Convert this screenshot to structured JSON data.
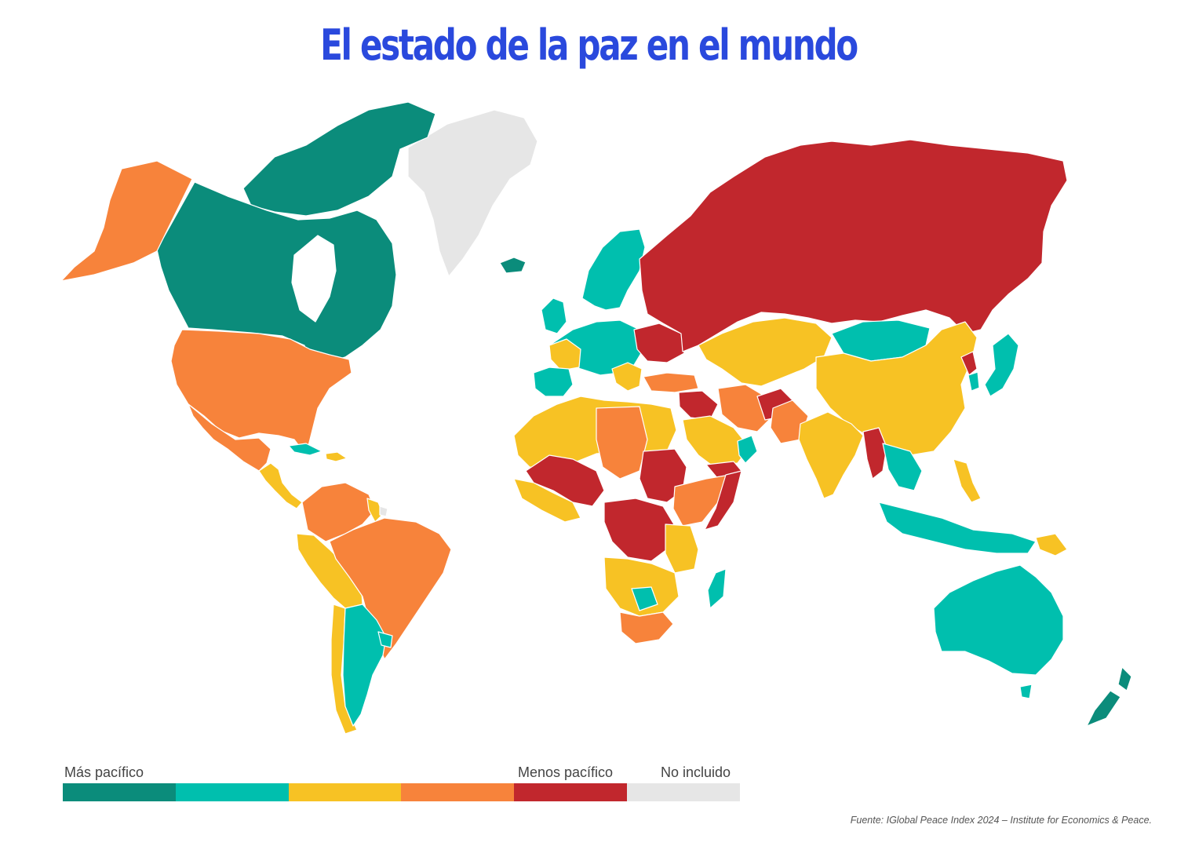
{
  "title": "El estado de la paz en el mundo",
  "legend": {
    "left_label": "Más pacífico",
    "mid_label": "Menos pacífico",
    "right_label": "No incluido",
    "colors": [
      "#0b8c7b",
      "#00bfae",
      "#f7c224",
      "#f7833b",
      "#c1272d",
      "#e6e6e6"
    ]
  },
  "source": "Fuente: IGlobal Peace Index 2024 – Institute for Economics & Peace.",
  "map_colors": {
    "very_high": "#0b8c7b",
    "high": "#00bfae",
    "medium": "#f7c224",
    "low": "#f7833b",
    "very_low": "#c1272d",
    "not_included": "#e6e6e6"
  }
}
